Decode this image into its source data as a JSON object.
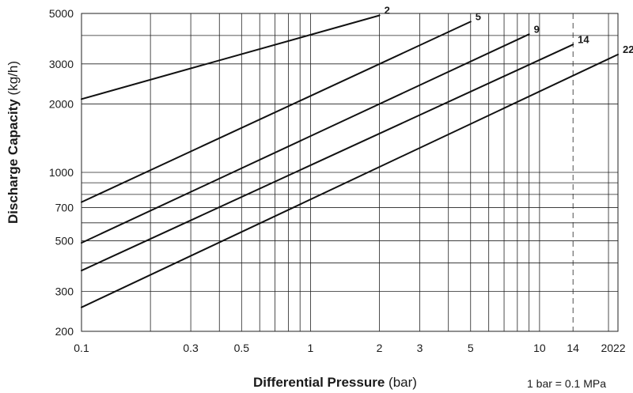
{
  "chart_data": {
    "type": "line",
    "title": "",
    "xlabel": "Differential Pressure",
    "xlabel_unit": "(bar)",
    "ylabel": "Discharge Capacity",
    "ylabel_unit": "(kg/h)",
    "x_scale": "log",
    "y_scale": "log",
    "xlim": [
      0.1,
      22
    ],
    "ylim": [
      200,
      5000
    ],
    "x_ticks": [
      0.1,
      0.3,
      0.5,
      1,
      2,
      3,
      5,
      10,
      14,
      20,
      22
    ],
    "x_tick_labels": [
      "0.1",
      "0.3",
      "0.5",
      "1",
      "2",
      "3",
      "5",
      "10",
      "14",
      "20",
      "22"
    ],
    "y_ticks": [
      200,
      300,
      500,
      700,
      1000,
      2000,
      3000,
      5000
    ],
    "y_tick_labels": [
      "200",
      "300",
      "500",
      "700",
      "1000",
      "2000",
      "3000",
      "5000"
    ],
    "x_grid": [
      0.1,
      0.2,
      0.3,
      0.4,
      0.5,
      0.6,
      0.7,
      0.8,
      0.9,
      1,
      2,
      3,
      4,
      5,
      6,
      7,
      8,
      9,
      10,
      14,
      20,
      22
    ],
    "y_grid": [
      200,
      300,
      400,
      500,
      600,
      700,
      800,
      900,
      1000,
      2000,
      3000,
      4000,
      5000
    ],
    "dashed_x": 14,
    "grid": true,
    "series": [
      {
        "name": "2",
        "x": [
          0.1,
          2
        ],
        "y": [
          2100,
          4900
        ]
      },
      {
        "name": "5",
        "x": [
          0.1,
          5
        ],
        "y": [
          740,
          4600
        ]
      },
      {
        "name": "9",
        "x": [
          0.1,
          9
        ],
        "y": [
          490,
          4050
        ]
      },
      {
        "name": "14",
        "x": [
          0.1,
          14
        ],
        "y": [
          370,
          3650
        ]
      },
      {
        "name": "22",
        "x": [
          0.1,
          22
        ],
        "y": [
          255,
          3300
        ]
      }
    ],
    "annotation": "1 bar = 0.1 MPa"
  }
}
